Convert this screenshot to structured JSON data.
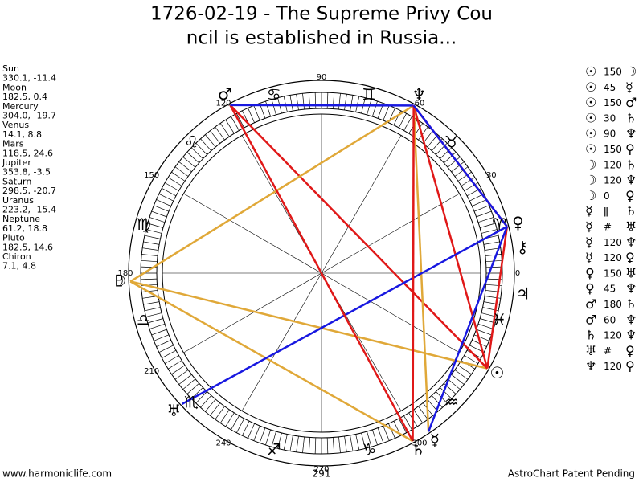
{
  "title": [
    "1726-02-19 - The Supreme Privy Cou",
    "ncil is established in Russia..."
  ],
  "planets": [
    {
      "name": "Sun",
      "coords": "330.1, -11.4",
      "glyph": "☉"
    },
    {
      "name": "Moon",
      "coords": "182.5, 0.4",
      "glyph": "☽"
    },
    {
      "name": "Mercury",
      "coords": "304.0, -19.7",
      "glyph": "☿"
    },
    {
      "name": "Venus",
      "coords": "14.1, 8.8",
      "glyph": "♀"
    },
    {
      "name": "Mars",
      "coords": "118.5, 24.6",
      "glyph": "♂"
    },
    {
      "name": "Jupiter",
      "coords": "353.8, -3.5",
      "glyph": "♃"
    },
    {
      "name": "Saturn",
      "coords": "298.5, -20.7",
      "glyph": "♄"
    },
    {
      "name": "Uranus",
      "coords": "223.2, -15.4",
      "glyph": "♅"
    },
    {
      "name": "Neptune",
      "coords": "61.2, 18.8",
      "glyph": "♆"
    },
    {
      "name": "Pluto",
      "coords": "182.5, 14.6",
      "glyph": "♇"
    },
    {
      "name": "Chiron",
      "coords": "7.1, 4.8",
      "glyph": "⚷"
    }
  ],
  "signs": [
    "♈",
    "♉",
    "♊",
    "♋",
    "♌",
    "♍",
    "♎",
    "♏",
    "♐",
    "♑",
    "♒",
    "♓"
  ],
  "degree_ticks": [
    0,
    30,
    60,
    90,
    120,
    150,
    180,
    210,
    240,
    270,
    300
  ],
  "ascendant": "291",
  "aspects": [
    {
      "a": "☉",
      "aspect": "150",
      "b": "☽",
      "color": "#e0a838"
    },
    {
      "a": "☉",
      "aspect": "45",
      "b": "☿"
    },
    {
      "a": "☉",
      "aspect": "150",
      "b": "♂",
      "color": "#e01818"
    },
    {
      "a": "☉",
      "aspect": "30",
      "b": "♄"
    },
    {
      "a": "☉",
      "aspect": "90",
      "b": "♆",
      "color": "#e01818"
    },
    {
      "a": "☉",
      "aspect": "150",
      "b": "♀",
      "color": "#e01818"
    },
    {
      "a": "☽",
      "aspect": "120",
      "b": "♄",
      "color": "#e0a838"
    },
    {
      "a": "☽",
      "aspect": "120",
      "b": "♆",
      "color": "#e0a838"
    },
    {
      "a": "☽",
      "aspect": "0",
      "b": "♀"
    },
    {
      "a": "☿",
      "aspect": "ǁ",
      "b": "♄"
    },
    {
      "a": "☿",
      "aspect": "#",
      "b": "♅"
    },
    {
      "a": "☿",
      "aspect": "120",
      "b": "♆",
      "color": "#e0a838"
    },
    {
      "a": "☿",
      "aspect": "120",
      "b": "♀",
      "color": "#1818e0"
    },
    {
      "a": "♀",
      "aspect": "150",
      "b": "♅",
      "color": "#1818e0"
    },
    {
      "a": "♀",
      "aspect": "45",
      "b": "♆",
      "color": "#e01818"
    },
    {
      "a": "♂",
      "aspect": "180",
      "b": "♄",
      "color": "#e01818"
    },
    {
      "a": "♂",
      "aspect": "60",
      "b": "♆",
      "color": "#1818e0"
    },
    {
      "a": "♄",
      "aspect": "120",
      "b": "♆",
      "color": "#e01818"
    },
    {
      "a": "♅",
      "aspect": "#",
      "b": "♀"
    },
    {
      "a": "♆",
      "aspect": "120",
      "b": "♀",
      "color": "#1818e0"
    }
  ],
  "footer": {
    "left": "www.harmoniclife.com",
    "right": "AstroChart Patent Pending"
  }
}
